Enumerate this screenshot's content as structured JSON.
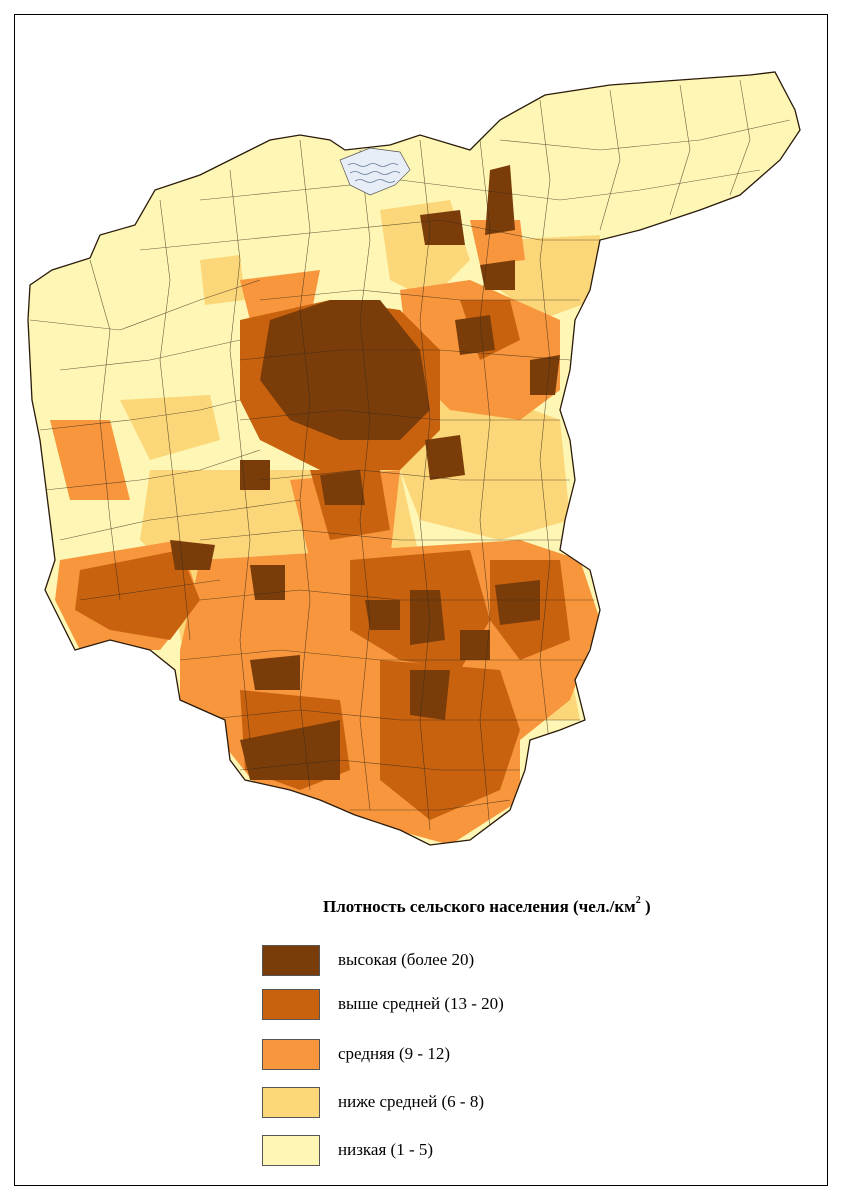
{
  "legend": {
    "title_main": "Плотность сельского населения (чел./км",
    "title_sup": "2",
    "title_end": " )",
    "items": [
      {
        "label": "высокая (более 20)",
        "color": "#7a3d0a"
      },
      {
        "label": "выше средней (13 - 20)",
        "color": "#c8620f"
      },
      {
        "label": "средняя (9 - 12)",
        "color": "#f7963c"
      },
      {
        "label": "ниже средней (6 - 8)",
        "color": "#fcd77a"
      },
      {
        "label": "низкая (1 - 5)",
        "color": "#fdf6b4"
      }
    ]
  },
  "colors": {
    "border": "#3a2a1a",
    "water": "#e8eef8"
  }
}
